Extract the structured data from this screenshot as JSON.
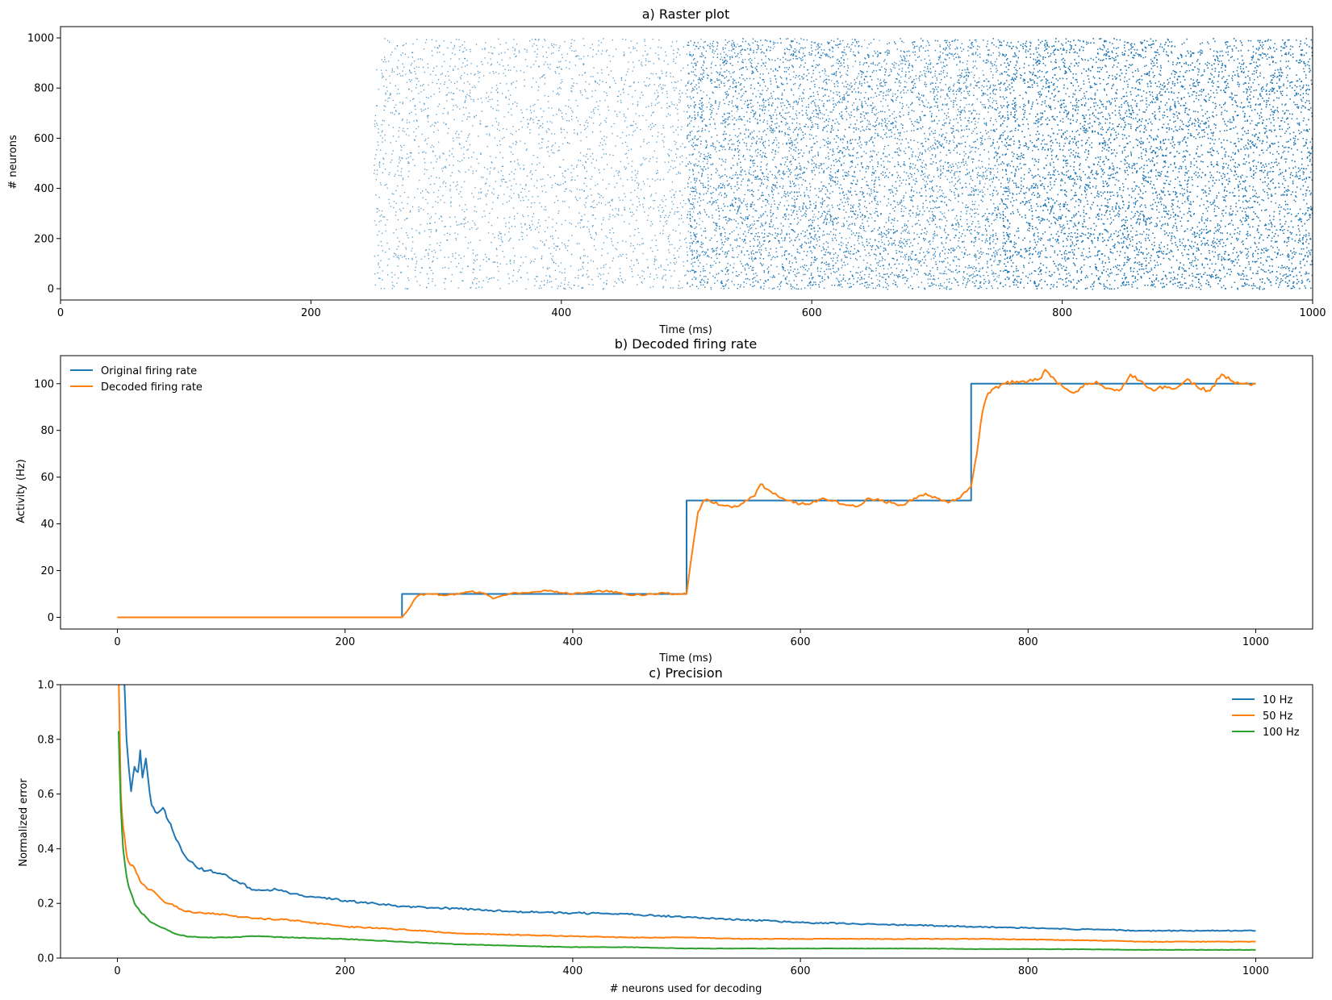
{
  "colors": {
    "blue": "#1f77b4",
    "orange": "#ff7f0e",
    "green": "#2ca02c",
    "frame": "#000000"
  },
  "chart_data": [
    {
      "type": "scatter",
      "title": "a) Raster plot",
      "xlabel": "Time (ms)",
      "ylabel": "# neurons",
      "xlim": [
        0,
        1000
      ],
      "ylim": [
        -45,
        1045
      ],
      "xticks": [
        0,
        200,
        400,
        600,
        800,
        1000
      ],
      "yticks": [
        0,
        200,
        400,
        600,
        800,
        1000
      ],
      "grid": false,
      "series": [
        {
          "name": "",
          "color": "#1f77b4",
          "marker_size": 0.8,
          "segments": [
            {
              "t_start": 250,
              "t_end": 500,
              "rate_hz": 10
            },
            {
              "t_start": 500,
              "t_end": 750,
              "rate_hz": 50
            },
            {
              "t_start": 750,
              "t_end": 1000,
              "rate_hz": 100
            }
          ],
          "neurons": 1000
        }
      ]
    },
    {
      "type": "line",
      "title": "b) Decoded firing rate",
      "xlabel": "Time (ms)",
      "ylabel": "Activity (Hz)",
      "xlim": [
        -50,
        1050
      ],
      "ylim": [
        -5,
        112
      ],
      "xticks": [
        0,
        200,
        400,
        600,
        800,
        1000
      ],
      "yticks": [
        0,
        20,
        40,
        60,
        80,
        100
      ],
      "grid": false,
      "legend": "top-left",
      "series": [
        {
          "name": "Original firing rate",
          "color": "#1f77b4",
          "x": [
            0,
            250,
            250,
            500,
            500,
            750,
            750,
            1000
          ],
          "y": [
            0,
            0,
            10,
            10,
            50,
            50,
            100,
            100
          ]
        },
        {
          "name": "Decoded firing rate",
          "color": "#ff7f0e",
          "x": [
            0,
            250,
            255,
            260,
            265,
            275,
            290,
            300,
            310,
            320,
            330,
            340,
            350,
            360,
            370,
            380,
            390,
            400,
            410,
            420,
            430,
            440,
            450,
            460,
            470,
            480,
            490,
            500,
            505,
            510,
            515,
            520,
            530,
            540,
            550,
            560,
            565,
            570,
            580,
            590,
            600,
            610,
            620,
            630,
            640,
            650,
            660,
            670,
            680,
            690,
            700,
            710,
            720,
            730,
            740,
            750,
            755,
            760,
            765,
            770,
            780,
            790,
            800,
            810,
            815,
            820,
            830,
            840,
            850,
            860,
            870,
            880,
            890,
            900,
            910,
            920,
            930,
            940,
            950,
            960,
            970,
            980,
            990,
            1000
          ],
          "y": [
            0,
            0,
            3,
            7,
            9.5,
            10,
            9.5,
            10,
            11,
            10.5,
            8,
            9.5,
            10.5,
            10.5,
            11,
            11.5,
            10.5,
            10,
            10.5,
            11,
            11.5,
            10.5,
            9.5,
            9.5,
            10,
            10.5,
            10,
            10,
            28,
            45,
            50,
            50,
            48,
            47,
            49,
            52,
            57,
            55,
            52,
            50,
            48.5,
            49,
            51,
            50,
            48,
            47.5,
            51,
            50,
            49,
            48,
            51,
            53,
            51,
            49,
            51,
            56,
            70,
            88,
            96,
            98,
            100,
            101,
            101,
            102,
            106,
            103,
            99,
            96,
            100,
            101,
            98,
            97,
            104,
            101,
            97,
            99,
            98,
            102,
            98,
            97,
            104,
            101,
            100,
            100
          ]
        }
      ]
    },
    {
      "type": "line",
      "title": "c) Precision",
      "xlabel": "# neurons used for decoding",
      "ylabel": "Normalized error",
      "xlim": [
        -50,
        1050
      ],
      "ylim": [
        0,
        1.0
      ],
      "xticks": [
        0,
        200,
        400,
        600,
        800,
        1000
      ],
      "yticks": [
        0.0,
        0.2,
        0.4,
        0.6,
        0.8,
        1.0
      ],
      "grid": false,
      "legend": "top-right",
      "series": [
        {
          "name": "10 Hz",
          "color": "#1f77b4",
          "x": [
            1,
            5,
            8,
            12,
            15,
            18,
            20,
            22,
            25,
            30,
            35,
            40,
            45,
            50,
            55,
            60,
            70,
            80,
            90,
            100,
            120,
            140,
            160,
            180,
            200,
            250,
            300,
            350,
            400,
            450,
            500,
            550,
            600,
            650,
            700,
            750,
            800,
            850,
            900,
            950,
            1000
          ],
          "y": [
            1.4,
            1.1,
            0.8,
            0.61,
            0.7,
            0.68,
            0.76,
            0.66,
            0.73,
            0.56,
            0.53,
            0.55,
            0.5,
            0.45,
            0.41,
            0.37,
            0.33,
            0.32,
            0.31,
            0.29,
            0.25,
            0.25,
            0.23,
            0.22,
            0.21,
            0.19,
            0.18,
            0.17,
            0.165,
            0.16,
            0.15,
            0.14,
            0.13,
            0.125,
            0.12,
            0.115,
            0.11,
            0.105,
            0.1,
            0.1,
            0.1
          ]
        },
        {
          "name": "50 Hz",
          "color": "#ff7f0e",
          "x": [
            1,
            3,
            5,
            8,
            10,
            15,
            20,
            25,
            30,
            40,
            50,
            60,
            80,
            100,
            120,
            150,
            200,
            250,
            300,
            350,
            400,
            450,
            500,
            550,
            600,
            650,
            700,
            750,
            800,
            850,
            900,
            950,
            1000
          ],
          "y": [
            1.05,
            0.6,
            0.48,
            0.38,
            0.35,
            0.33,
            0.28,
            0.26,
            0.25,
            0.21,
            0.19,
            0.17,
            0.165,
            0.155,
            0.145,
            0.14,
            0.115,
            0.105,
            0.09,
            0.085,
            0.08,
            0.075,
            0.075,
            0.07,
            0.07,
            0.07,
            0.07,
            0.07,
            0.068,
            0.065,
            0.06,
            0.06,
            0.06
          ]
        },
        {
          "name": "100 Hz",
          "color": "#2ca02c",
          "x": [
            1,
            3,
            5,
            8,
            10,
            15,
            20,
            25,
            30,
            40,
            50,
            60,
            80,
            100,
            120,
            150,
            200,
            250,
            300,
            350,
            400,
            450,
            500,
            550,
            600,
            650,
            700,
            750,
            800,
            850,
            900,
            950,
            1000
          ],
          "y": [
            0.83,
            0.55,
            0.4,
            0.3,
            0.26,
            0.2,
            0.17,
            0.15,
            0.13,
            0.11,
            0.09,
            0.08,
            0.075,
            0.075,
            0.08,
            0.075,
            0.07,
            0.06,
            0.05,
            0.045,
            0.04,
            0.04,
            0.035,
            0.035,
            0.035,
            0.035,
            0.035,
            0.033,
            0.033,
            0.032,
            0.03,
            0.03,
            0.03
          ]
        }
      ]
    }
  ]
}
